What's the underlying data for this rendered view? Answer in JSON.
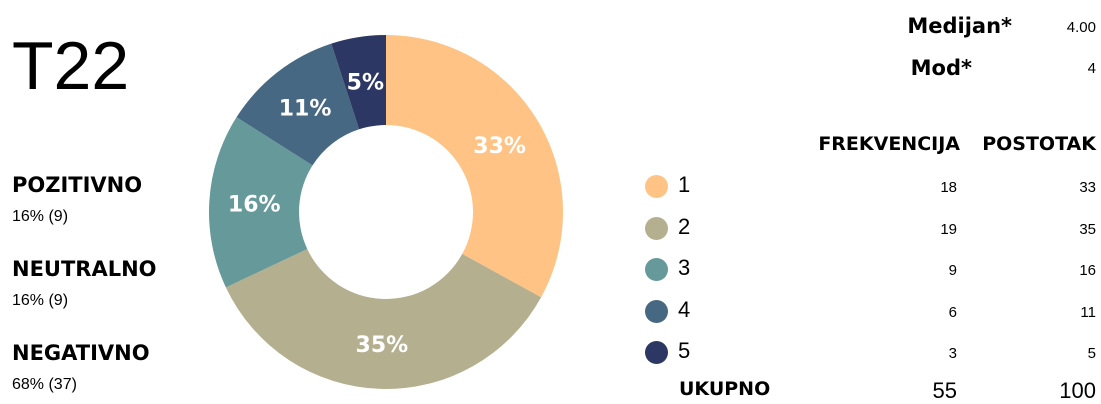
{
  "title": "T22",
  "summary": [
    {
      "label": "POZITIVNO",
      "value": "16% (9)"
    },
    {
      "label": "NEUTRALNO",
      "value": "16% (9)"
    },
    {
      "label": "NEGATIVNO",
      "value": "68% (37)"
    }
  ],
  "stats": [
    {
      "label": "Medijan*",
      "value": "4.00"
    },
    {
      "label": "Mod*",
      "value": "4"
    }
  ],
  "table": {
    "headers": [
      "FREKVENCIJA",
      "POSTOTAK"
    ],
    "total_label": "UKUPNO",
    "total_frequency": "55",
    "total_percent": "100"
  },
  "chart_data": {
    "type": "pie",
    "donut": true,
    "categories": [
      "1",
      "2",
      "3",
      "4",
      "5"
    ],
    "frequencies": [
      "18",
      "19",
      "9",
      "6",
      "3"
    ],
    "percents": [
      "33",
      "35",
      "16",
      "11",
      "5"
    ],
    "values": [
      33,
      35,
      16,
      11,
      5
    ],
    "slice_labels": [
      "33%",
      "35%",
      "16%",
      "11%",
      "5%"
    ],
    "colors": [
      "#FFC385",
      "#B3AF8F",
      "#669999",
      "#476882",
      "#2C3763"
    ]
  }
}
